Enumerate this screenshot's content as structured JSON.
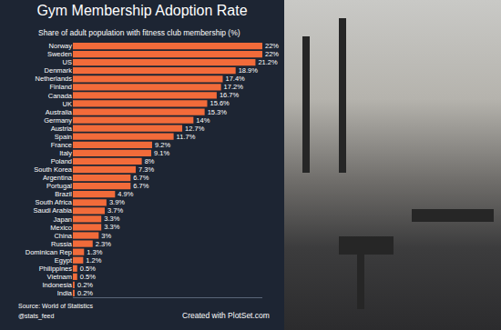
{
  "chart_data": {
    "type": "bar",
    "orientation": "horizontal",
    "title": "Gym Membership Adoption Rate",
    "subtitle": "Share of adult population with fitness club membership (%)",
    "categories": [
      "Norway",
      "Sweden",
      "US",
      "Denmark",
      "Netherlands",
      "Finland",
      "Canada",
      "UK",
      "Australia",
      "Germany",
      "Austria",
      "Spain",
      "France",
      "Italy",
      "Poland",
      "South Korea",
      "Argentina",
      "Portugal",
      "Brazil",
      "South Africa",
      "Saudi Arabia",
      "Japan",
      "Mexico",
      "China",
      "Russia",
      "Dominican Rep",
      "Egypt",
      "Philippines",
      "Vietnam",
      "Indonesia",
      "India"
    ],
    "values": [
      22,
      22,
      21.2,
      18.9,
      17.4,
      17.2,
      16.7,
      15.6,
      15.3,
      14,
      12.7,
      11.7,
      9.2,
      9.1,
      8,
      7.3,
      6.7,
      6.7,
      4.9,
      3.9,
      3.7,
      3.3,
      3.3,
      3,
      2.3,
      1.3,
      1.2,
      0.5,
      0.5,
      0.2,
      0.2
    ],
    "value_labels": [
      "22%",
      "22%",
      "21.2%",
      "18.9%",
      "17.4%",
      "17.2%",
      "16.7%",
      "15.6%",
      "15.3%",
      "14%",
      "12.7%",
      "11.7%",
      "9.2%",
      "9.1%",
      "8%",
      "7.3%",
      "6.7%",
      "6.7%",
      "4.9%",
      "3.9%",
      "3.7%",
      "3.3%",
      "3.3%",
      "3%",
      "2.3%",
      "1.3%",
      "1.2%",
      "0.5%",
      "0.5%",
      "0.2%",
      "0.2%"
    ],
    "color": "#f26b3a",
    "data_labels": true,
    "tick_labels": "y",
    "grid": false,
    "xlim": [
      0,
      22
    ],
    "xticks": [],
    "annotations": [
      "Source: World of Statistics",
      "@stats_feed",
      "Created with PlotSet.com"
    ]
  }
}
